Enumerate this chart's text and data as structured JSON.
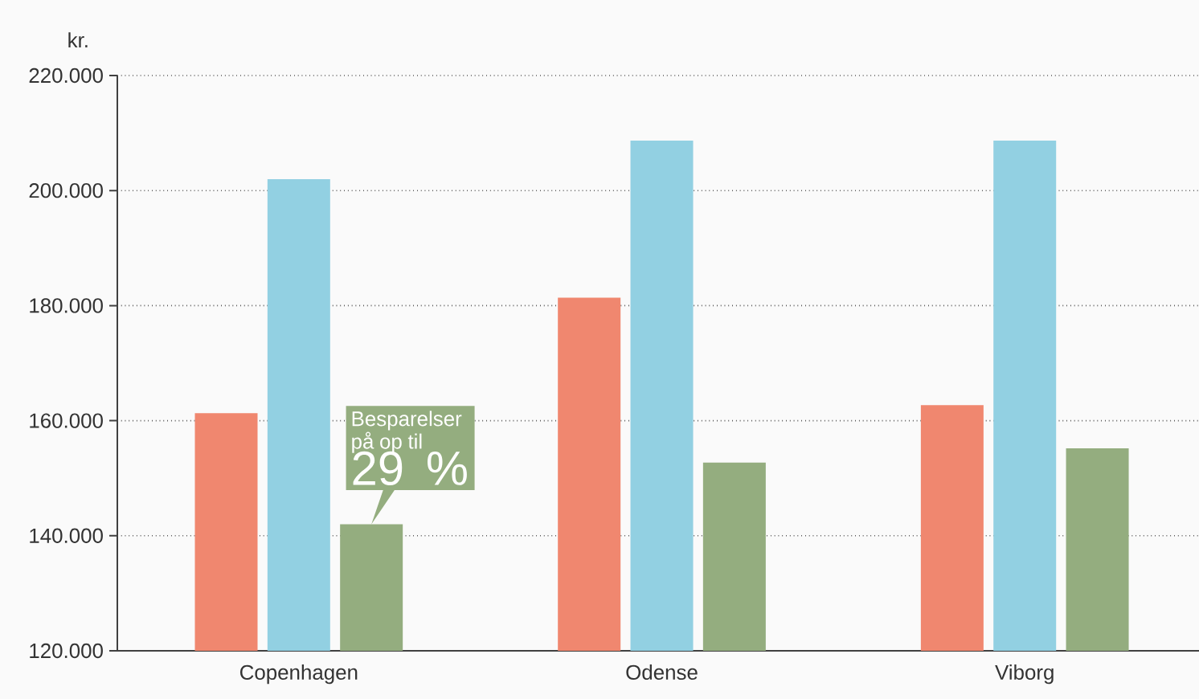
{
  "chart_data": {
    "type": "bar",
    "ylabel": "kr.",
    "categories": [
      "Copenhagen",
      "Odense",
      "Viborg"
    ],
    "series": [
      {
        "color": "#f0876f",
        "values": [
          161300,
          181400,
          162700
        ]
      },
      {
        "color": "#92d0e2",
        "values": [
          202000,
          208700,
          208700
        ]
      },
      {
        "color": "#94ad7f",
        "values": [
          142000,
          152700,
          155200
        ]
      }
    ],
    "ylim": [
      120000,
      220000
    ],
    "yticks": [
      {
        "value": 120000,
        "label": "120.000"
      },
      {
        "value": 140000,
        "label": "140.000"
      },
      {
        "value": 160000,
        "label": "160.000"
      },
      {
        "value": 180000,
        "label": "180.000"
      },
      {
        "value": 200000,
        "label": "200.000"
      },
      {
        "value": 220000,
        "label": "220.000"
      }
    ],
    "grid": "y",
    "annotations": [
      "Besparelser på op til",
      "29 %"
    ]
  }
}
